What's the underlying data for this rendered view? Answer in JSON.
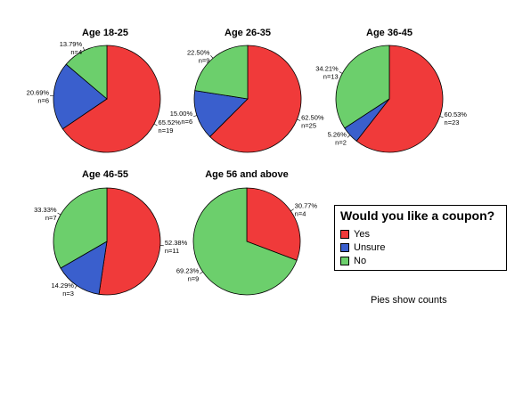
{
  "chart_data": [
    {
      "type": "pie",
      "title": "Age 18-25",
      "categories": [
        "Yes",
        "Unsure",
        "No"
      ],
      "values": [
        19,
        6,
        4
      ],
      "labels": [
        {
          "category": "Yes",
          "percent": "65.52%",
          "count": "n=19"
        },
        {
          "category": "Unsure",
          "percent": "20.69%",
          "count": "n=6"
        },
        {
          "category": "No",
          "percent": "13.79%",
          "count": "n=4"
        }
      ]
    },
    {
      "type": "pie",
      "title": "Age 26-35",
      "categories": [
        "Yes",
        "Unsure",
        "No"
      ],
      "values": [
        25,
        6,
        9
      ],
      "labels": [
        {
          "category": "Yes",
          "percent": "62.50%",
          "count": "n=25"
        },
        {
          "category": "Unsure",
          "percent": "15.00%",
          "count": "n=6"
        },
        {
          "category": "No",
          "percent": "22.50%",
          "count": "n=9"
        }
      ]
    },
    {
      "type": "pie",
      "title": "Age 36-45",
      "categories": [
        "Yes",
        "Unsure",
        "No"
      ],
      "values": [
        23,
        2,
        13
      ],
      "labels": [
        {
          "category": "Yes",
          "percent": "60.53%",
          "count": "n=23"
        },
        {
          "category": "Unsure",
          "percent": "5.26%",
          "count": "n=2"
        },
        {
          "category": "No",
          "percent": "34.21%",
          "count": "n=13"
        }
      ]
    },
    {
      "type": "pie",
      "title": "Age 46-55",
      "categories": [
        "Yes",
        "Unsure",
        "No"
      ],
      "values": [
        11,
        3,
        7
      ],
      "labels": [
        {
          "category": "Yes",
          "percent": "52.38%",
          "count": "n=11"
        },
        {
          "category": "Unsure",
          "percent": "14.29%",
          "count": "n=3"
        },
        {
          "category": "No",
          "percent": "33.33%",
          "count": "n=7"
        }
      ]
    },
    {
      "type": "pie",
      "title": "Age 56 and above",
      "categories": [
        "Yes",
        "No"
      ],
      "values": [
        4,
        9
      ],
      "labels": [
        {
          "category": "Yes",
          "percent": "30.77%",
          "count": "n=4"
        },
        {
          "category": "No",
          "percent": "69.23%",
          "count": "n=9"
        }
      ]
    }
  ],
  "legend": {
    "title": "Would you like a coupon?",
    "placement": "right",
    "items": [
      {
        "label": "Yes",
        "color": "#f03a3a"
      },
      {
        "label": "Unsure",
        "color": "#3a5fcd"
      },
      {
        "label": "No",
        "color": "#6ccf6c"
      }
    ]
  },
  "colors": {
    "Yes": "#f03a3a",
    "Unsure": "#3a5fcd",
    "No": "#6ccf6c"
  },
  "footnote": "Pies show counts"
}
